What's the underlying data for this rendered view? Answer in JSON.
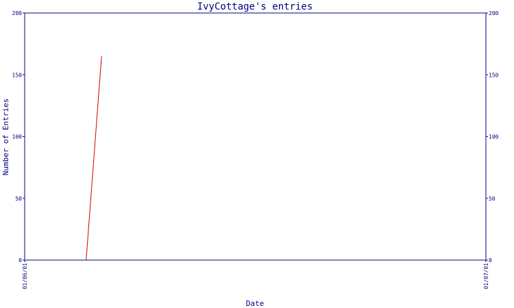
{
  "chart_data": {
    "type": "line",
    "title": "IvyCottage's entries",
    "xlabel": "Date",
    "ylabel": "Number of Entries",
    "x_tick_labels": [
      "01/06/01",
      "01/07/01"
    ],
    "x_range": [
      "2001-06-01",
      "2001-07-01"
    ],
    "ylim": [
      0,
      200
    ],
    "y_ticks": [
      0,
      50,
      100,
      150,
      200
    ],
    "grid": false,
    "series": [
      {
        "color": "#cc0000",
        "points": [
          {
            "x": "2001-06-05",
            "y": 0
          },
          {
            "x": "2001-06-06",
            "y": 165
          }
        ]
      }
    ],
    "colors": {
      "axis": "#000080",
      "text": "#000080",
      "line": "#cc0000"
    }
  }
}
